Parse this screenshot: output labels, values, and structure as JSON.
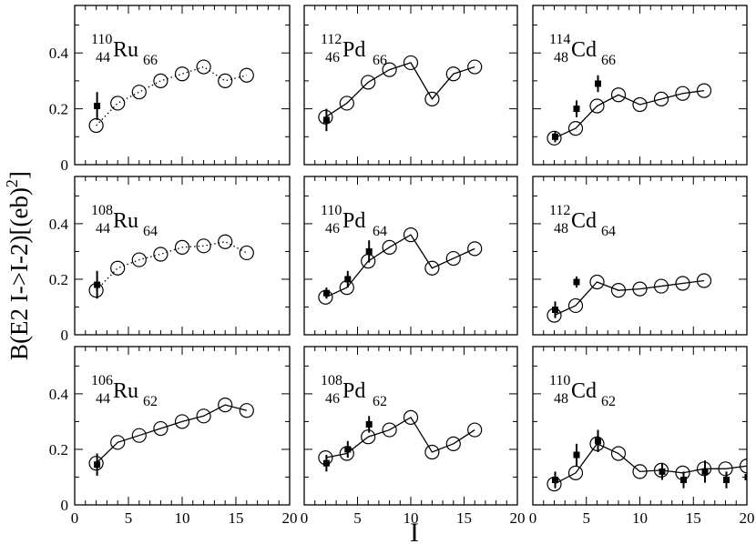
{
  "figure": {
    "xlabel": "I",
    "ylabel": "B(E2 I->I-2)[(eb)",
    "ylabel_sup": "2",
    "ylabel_tail": "]"
  },
  "chart_data": [
    {
      "type": "line",
      "nucleus": {
        "mass": "110",
        "z": "44",
        "sym": "Ru",
        "n": "66"
      },
      "line_style": "dotted",
      "xlim": [
        0,
        20
      ],
      "ylim": [
        0,
        0.57
      ],
      "xticks": [],
      "yticks": [
        "0",
        "0.2",
        "0.4"
      ],
      "theory": {
        "x": [
          2,
          4,
          6,
          8,
          10,
          12,
          14,
          16
        ],
        "y": [
          0.14,
          0.22,
          0.26,
          0.3,
          0.325,
          0.35,
          0.3,
          0.32
        ]
      },
      "experiment": [
        {
          "x": 2,
          "y": 0.21,
          "err": 0.05
        }
      ]
    },
    {
      "type": "line",
      "nucleus": {
        "mass": "112",
        "z": "46",
        "sym": "Pd",
        "n": "66"
      },
      "line_style": "solid",
      "xlim": [
        0,
        20
      ],
      "ylim": [
        0,
        0.57
      ],
      "xticks": [],
      "yticks": [],
      "theory": {
        "x": [
          2,
          4,
          6,
          8,
          10,
          12,
          14,
          16
        ],
        "y": [
          0.17,
          0.22,
          0.295,
          0.34,
          0.365,
          0.235,
          0.325,
          0.35
        ]
      },
      "experiment": [
        {
          "x": 2,
          "y": 0.16,
          "err": 0.04
        }
      ]
    },
    {
      "type": "line",
      "nucleus": {
        "mass": "114",
        "z": "48",
        "sym": "Cd",
        "n": "66"
      },
      "line_style": "solid",
      "xlim": [
        0,
        20
      ],
      "ylim": [
        0,
        0.57
      ],
      "xticks": [],
      "yticks": [],
      "theory": {
        "x": [
          2,
          4,
          6,
          8,
          10,
          12,
          14,
          16
        ],
        "y": [
          0.095,
          0.13,
          0.21,
          0.25,
          0.215,
          0.235,
          0.255,
          0.265
        ]
      },
      "experiment": [
        {
          "x": 2,
          "y": 0.1,
          "err": 0.02
        },
        {
          "x": 4,
          "y": 0.2,
          "err": 0.03
        },
        {
          "x": 6,
          "y": 0.29,
          "err": 0.03
        }
      ]
    },
    {
      "type": "line",
      "nucleus": {
        "mass": "108",
        "z": "44",
        "sym": "Ru",
        "n": "64"
      },
      "line_style": "dotted",
      "xlim": [
        0,
        20
      ],
      "ylim": [
        0,
        0.57
      ],
      "xticks": [],
      "yticks": [
        "0",
        "0.2",
        "0.4"
      ],
      "theory": {
        "x": [
          2,
          4,
          6,
          8,
          10,
          12,
          14,
          16
        ],
        "y": [
          0.16,
          0.24,
          0.27,
          0.29,
          0.315,
          0.32,
          0.335,
          0.295
        ]
      },
      "experiment": [
        {
          "x": 2,
          "y": 0.18,
          "err": 0.05
        }
      ]
    },
    {
      "type": "line",
      "nucleus": {
        "mass": "110",
        "z": "46",
        "sym": "Pd",
        "n": "64"
      },
      "line_style": "solid",
      "xlim": [
        0,
        20
      ],
      "ylim": [
        0,
        0.57
      ],
      "xticks": [],
      "yticks": [],
      "theory": {
        "x": [
          2,
          4,
          6,
          8,
          10,
          12,
          14,
          16
        ],
        "y": [
          0.135,
          0.17,
          0.265,
          0.315,
          0.36,
          0.24,
          0.275,
          0.31
        ]
      },
      "experiment": [
        {
          "x": 2,
          "y": 0.15,
          "err": 0.02
        },
        {
          "x": 4,
          "y": 0.2,
          "err": 0.03
        },
        {
          "x": 6,
          "y": 0.3,
          "err": 0.04
        }
      ]
    },
    {
      "type": "line",
      "nucleus": {
        "mass": "112",
        "z": "48",
        "sym": "Cd",
        "n": "64"
      },
      "line_style": "solid",
      "xlim": [
        0,
        20
      ],
      "ylim": [
        0,
        0.57
      ],
      "xticks": [],
      "yticks": [],
      "theory": {
        "x": [
          2,
          4,
          6,
          8,
          10,
          12,
          14,
          16
        ],
        "y": [
          0.07,
          0.105,
          0.19,
          0.16,
          0.165,
          0.175,
          0.185,
          0.195
        ]
      },
      "experiment": [
        {
          "x": 2,
          "y": 0.09,
          "err": 0.03
        },
        {
          "x": 4,
          "y": 0.19,
          "err": 0.02
        }
      ]
    },
    {
      "type": "line",
      "nucleus": {
        "mass": "106",
        "z": "44",
        "sym": "Ru",
        "n": "62"
      },
      "line_style": "solid",
      "xlim": [
        0,
        20
      ],
      "ylim": [
        0,
        0.57
      ],
      "xticks": [
        "0",
        "5",
        "10",
        "15",
        "20"
      ],
      "yticks": [
        "0",
        "0.2",
        "0.4"
      ],
      "theory": {
        "x": [
          2,
          4,
          6,
          8,
          10,
          12,
          14,
          16
        ],
        "y": [
          0.15,
          0.225,
          0.25,
          0.275,
          0.3,
          0.32,
          0.36,
          0.34
        ]
      },
      "experiment": [
        {
          "x": 2,
          "y": 0.145,
          "err": 0.04
        }
      ]
    },
    {
      "type": "line",
      "nucleus": {
        "mass": "108",
        "z": "46",
        "sym": "Pd",
        "n": "62"
      },
      "line_style": "solid",
      "xlim": [
        0,
        20
      ],
      "ylim": [
        0,
        0.57
      ],
      "xticks": [
        "0",
        "5",
        "10",
        "15",
        "20"
      ],
      "yticks": [],
      "theory": {
        "x": [
          2,
          4,
          6,
          8,
          10,
          12,
          14,
          16
        ],
        "y": [
          0.17,
          0.185,
          0.245,
          0.27,
          0.315,
          0.19,
          0.22,
          0.27
        ]
      },
      "experiment": [
        {
          "x": 2,
          "y": 0.15,
          "err": 0.03
        },
        {
          "x": 4,
          "y": 0.2,
          "err": 0.03
        },
        {
          "x": 6,
          "y": 0.29,
          "err": 0.03
        }
      ]
    },
    {
      "type": "line",
      "nucleus": {
        "mass": "110",
        "z": "48",
        "sym": "Cd",
        "n": "62"
      },
      "line_style": "solid",
      "xlim": [
        0,
        20
      ],
      "ylim": [
        0,
        0.57
      ],
      "xticks": [
        "0",
        "5",
        "10",
        "15",
        "20"
      ],
      "yticks": [],
      "theory": {
        "x": [
          2,
          4,
          6,
          8,
          10,
          12,
          14,
          16,
          18,
          20
        ],
        "y": [
          0.075,
          0.115,
          0.22,
          0.185,
          0.12,
          0.125,
          0.115,
          0.13,
          0.13,
          0.14
        ]
      },
      "experiment": [
        {
          "x": 2,
          "y": 0.09,
          "err": 0.03
        },
        {
          "x": 4,
          "y": 0.18,
          "err": 0.04
        },
        {
          "x": 6,
          "y": 0.23,
          "err": 0.04
        },
        {
          "x": 12,
          "y": 0.12,
          "err": 0.03
        },
        {
          "x": 14,
          "y": 0.09,
          "err": 0.03
        },
        {
          "x": 16,
          "y": 0.12,
          "err": 0.04
        },
        {
          "x": 18,
          "y": 0.09,
          "err": 0.03
        },
        {
          "x": 20,
          "y": 0.1,
          "err": 0.04
        }
      ]
    }
  ]
}
